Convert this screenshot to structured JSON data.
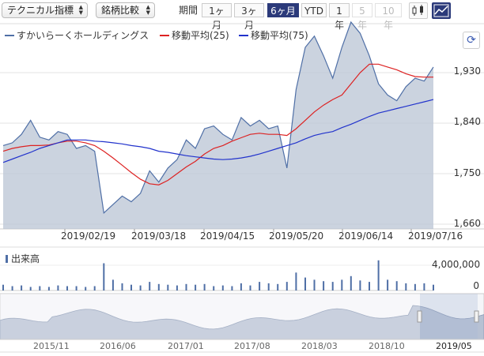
{
  "toolbar": {
    "chart_type_select": "テクニカル指標",
    "compare_select": "銘柄比較",
    "period_label": "期間",
    "periods": [
      {
        "label": "1ヶ月",
        "state": "normal"
      },
      {
        "label": "3ヶ月",
        "state": "normal"
      },
      {
        "label": "6ヶ月",
        "state": "active"
      },
      {
        "label": "YTD",
        "state": "normal"
      },
      {
        "label": "1年",
        "state": "normal"
      },
      {
        "label": "5年",
        "state": "disabled"
      },
      {
        "label": "10年",
        "state": "disabled"
      }
    ],
    "chart_style_icons": [
      "candlestick-icon",
      "area-chart-icon"
    ]
  },
  "legend": [
    {
      "label": "すかいらーくホールディングス",
      "color": "#4f6fa6"
    },
    {
      "label": "移動平均(25)",
      "color": "#dd2222"
    },
    {
      "label": "移動平均(75)",
      "color": "#2233cc"
    }
  ],
  "colors": {
    "price_line": "#4f6fa6",
    "ma25": "#dd2222",
    "ma75": "#2233cc",
    "area_fill": "#b9c4d4",
    "active": "#2b3a7a"
  },
  "volume": {
    "title": "出来高",
    "ticks": [
      "4,000,000",
      "0"
    ]
  },
  "navigator": {
    "labels": [
      "2015/11",
      "2016/06",
      "2017/01",
      "2017/08",
      "2018/03",
      "2018/10",
      "2019/05"
    ]
  },
  "chart_data": {
    "type": "line",
    "ylim": [
      1660,
      1930
    ],
    "yticks": [
      "1,930",
      "1,840",
      "1,750",
      "1,660"
    ],
    "xticks": [
      "2019/02/19",
      "2019/03/18",
      "2019/04/15",
      "2019/05/20",
      "2019/06/14",
      "2019/07/16"
    ],
    "x_dates": [
      "2019/01/16",
      "2019/01/18",
      "2019/01/22",
      "2019/01/24",
      "2019/01/28",
      "2019/01/30",
      "2019/02/01",
      "2019/02/05",
      "2019/02/07",
      "2019/02/12",
      "2019/02/14",
      "2019/02/19",
      "2019/02/22",
      "2019/02/27",
      "2019/03/04",
      "2019/03/08",
      "2019/03/13",
      "2019/03/18",
      "2019/03/22",
      "2019/03/27",
      "2019/04/01",
      "2019/04/04",
      "2019/04/09",
      "2019/04/12",
      "2019/04/15",
      "2019/04/18",
      "2019/04/23",
      "2019/04/26",
      "2019/05/08",
      "2019/05/13",
      "2019/05/16",
      "2019/05/17",
      "2019/05/20",
      "2019/05/22",
      "2019/05/24",
      "2019/05/29",
      "2019/06/03",
      "2019/06/06",
      "2019/06/11",
      "2019/06/14",
      "2019/06/19",
      "2019/06/24",
      "2019/06/28",
      "2019/07/03",
      "2019/07/08",
      "2019/07/12",
      "2019/07/16",
      "2019/07/19"
    ],
    "series": [
      {
        "name": "すかいらーくホールディングス",
        "values": [
          1800,
          1805,
          1820,
          1845,
          1815,
          1810,
          1825,
          1820,
          1795,
          1800,
          1790,
          1680,
          1695,
          1710,
          1700,
          1715,
          1755,
          1735,
          1760,
          1775,
          1810,
          1795,
          1830,
          1835,
          1820,
          1810,
          1850,
          1835,
          1845,
          1830,
          1835,
          1760,
          1900,
          1975,
          1995,
          1960,
          1920,
          1975,
          2020,
          2000,
          1960,
          1910,
          1890,
          1880,
          1905,
          1920,
          1915,
          1940
        ]
      },
      {
        "name": "移動平均(25)",
        "values": [
          1790,
          1795,
          1798,
          1800,
          1800,
          1801,
          1805,
          1808,
          1808,
          1805,
          1800,
          1790,
          1778,
          1765,
          1752,
          1740,
          1732,
          1730,
          1738,
          1750,
          1762,
          1772,
          1785,
          1795,
          1800,
          1808,
          1814,
          1820,
          1822,
          1820,
          1820,
          1818,
          1830,
          1845,
          1860,
          1872,
          1882,
          1890,
          1910,
          1930,
          1945,
          1945,
          1940,
          1935,
          1928,
          1923,
          1922,
          1922
        ]
      },
      {
        "name": "移動平均(75)",
        "values": [
          1770,
          1776,
          1782,
          1788,
          1795,
          1800,
          1805,
          1810,
          1810,
          1810,
          1808,
          1807,
          1805,
          1803,
          1800,
          1798,
          1795,
          1790,
          1788,
          1785,
          1782,
          1780,
          1778,
          1776,
          1775,
          1776,
          1778,
          1781,
          1785,
          1790,
          1795,
          1800,
          1805,
          1812,
          1818,
          1822,
          1825,
          1832,
          1838,
          1845,
          1852,
          1858,
          1862,
          1866,
          1870,
          1874,
          1878,
          1882
        ]
      }
    ],
    "volume_values": [
      0.8,
      0.6,
      0.7,
      0.5,
      0.6,
      0.5,
      0.7,
      0.6,
      0.6,
      0.5,
      0.6,
      3.8,
      1.5,
      1.0,
      0.8,
      0.7,
      1.2,
      0.9,
      0.8,
      0.7,
      0.9,
      0.8,
      0.9,
      0.6,
      0.7,
      0.6,
      1.0,
      0.7,
      1.2,
      1.0,
      0.9,
      1.2,
      2.5,
      1.8,
      1.5,
      1.3,
      1.2,
      1.5,
      2.0,
      1.4,
      1.2,
      4.2,
      1.5,
      1.3,
      1.0,
      0.9,
      1.0,
      0.8
    ]
  }
}
